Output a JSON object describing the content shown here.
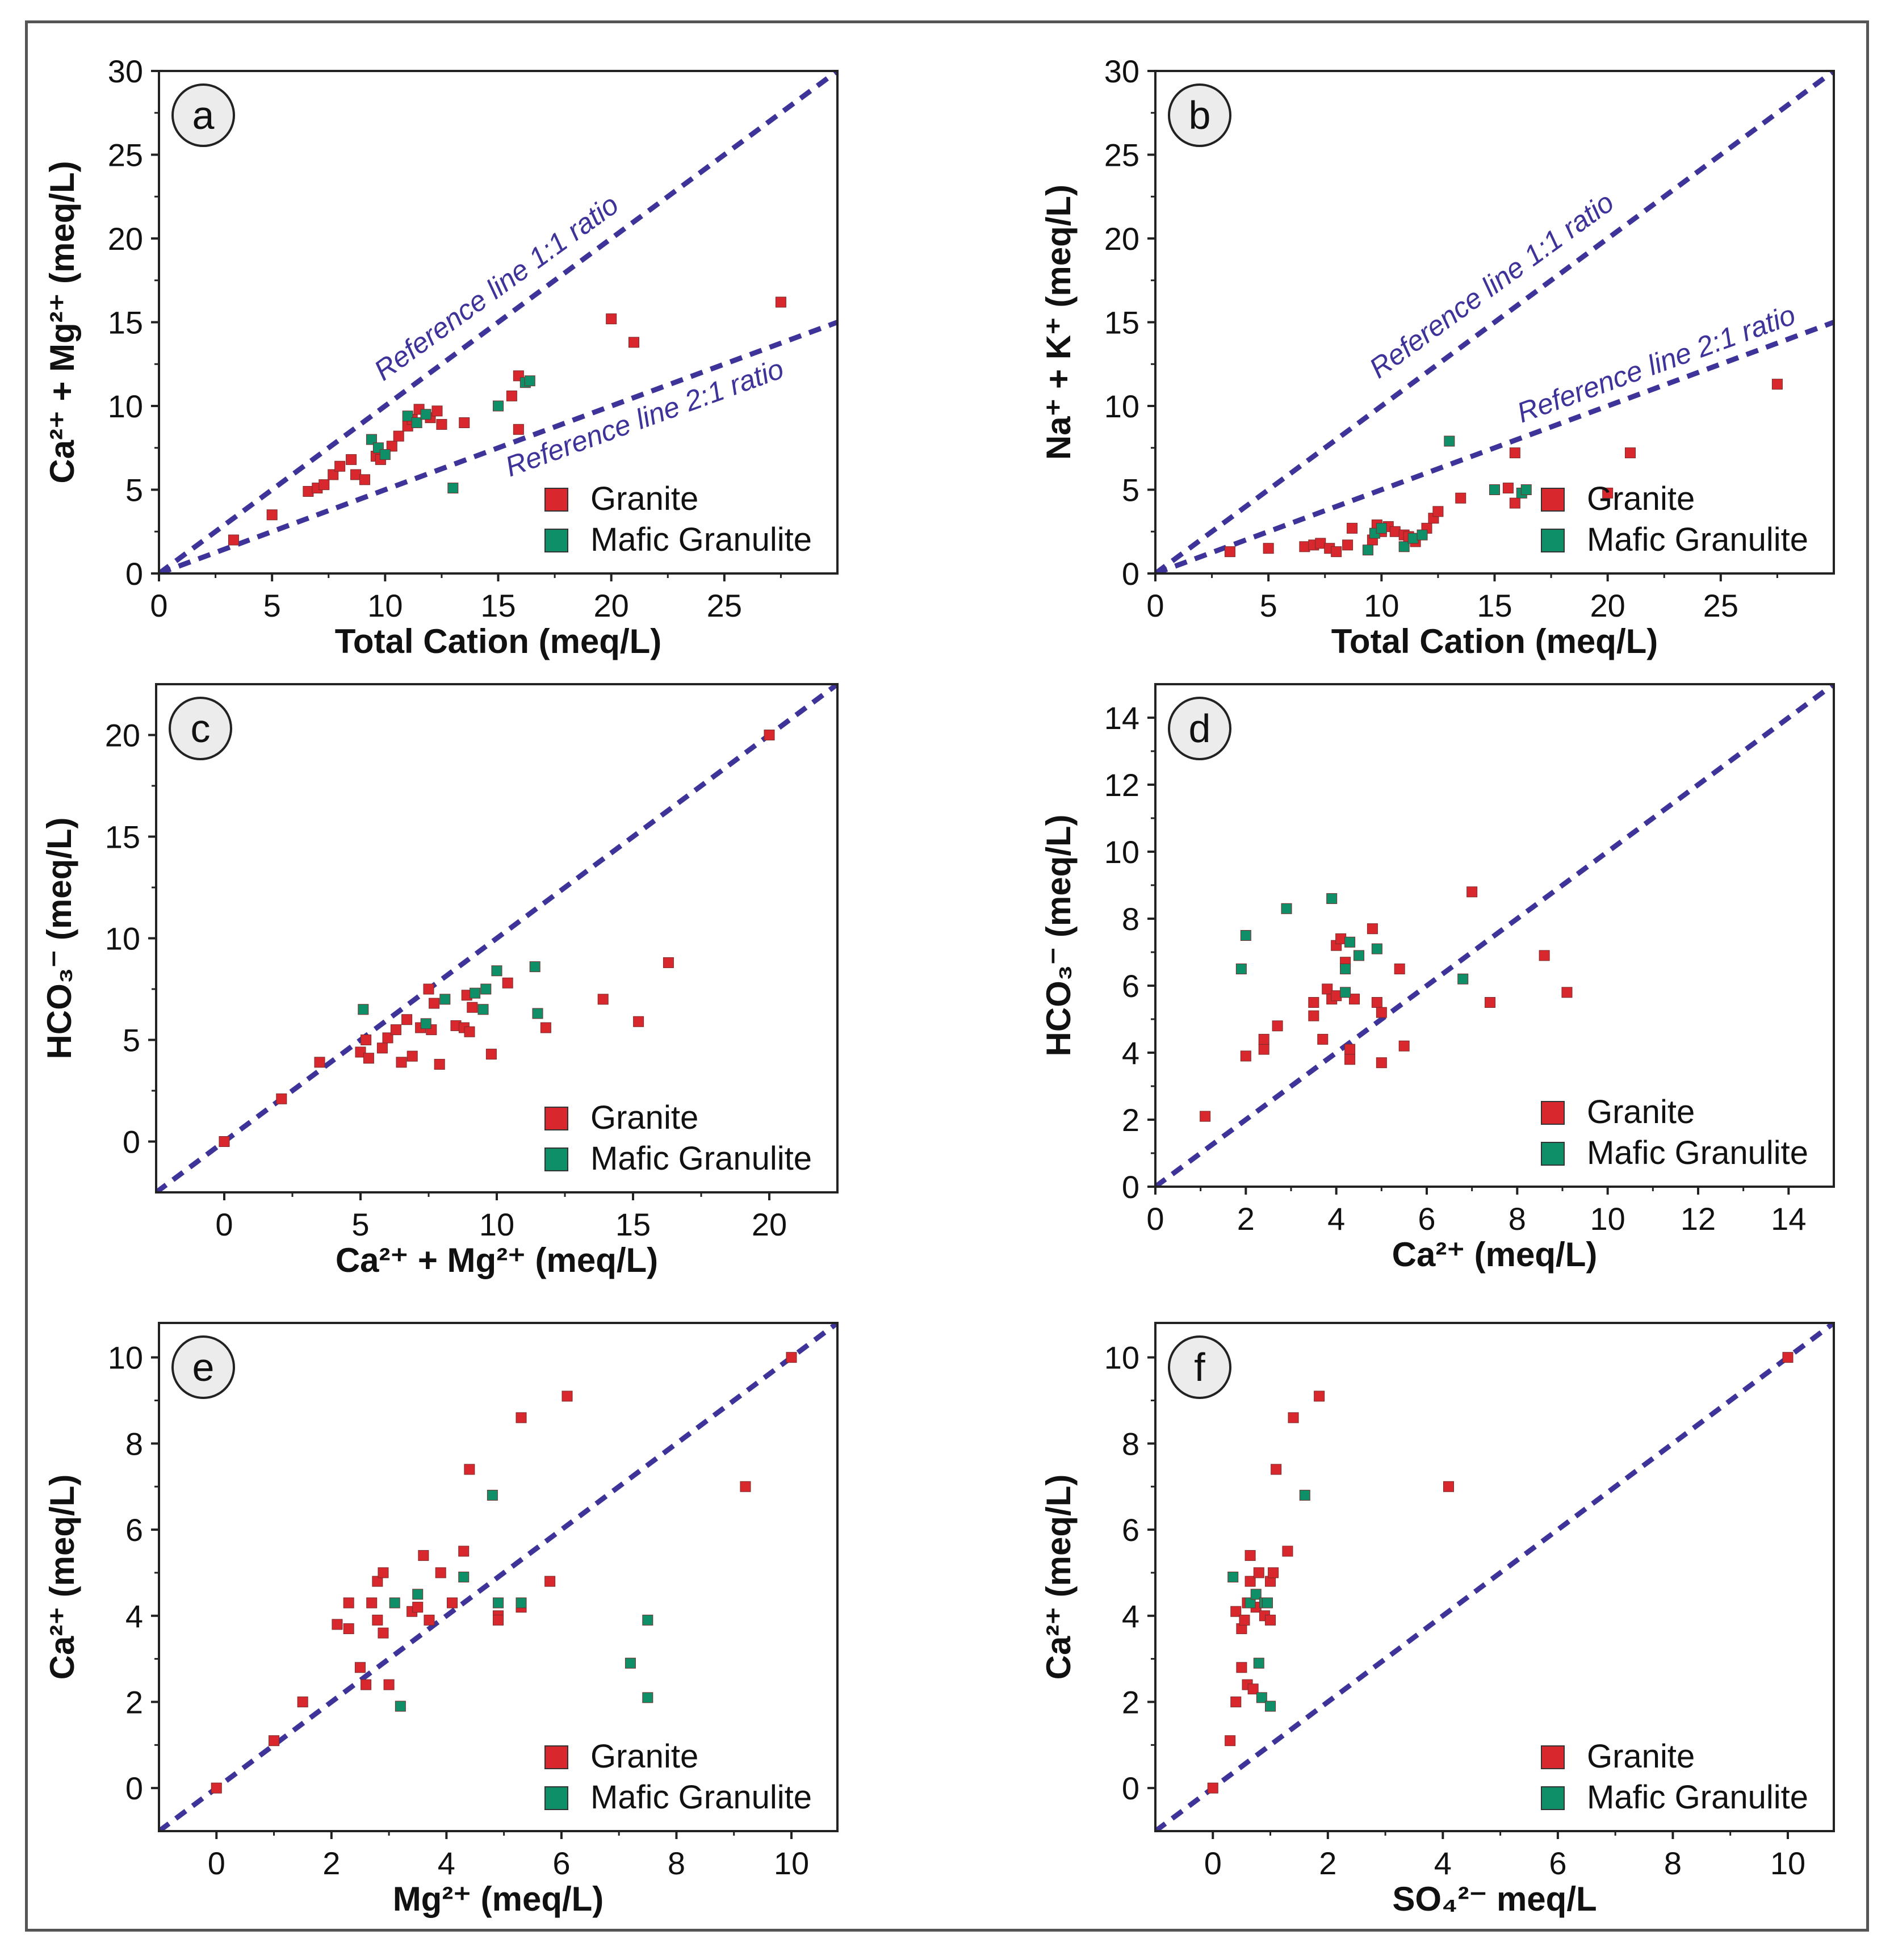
{
  "colors": {
    "granite": "#d8282e",
    "mafic": "#0e8f68",
    "line": "#3d3399",
    "axis": "#222222"
  },
  "legend": {
    "granite": "Granite",
    "mafic": "Mafic Granulite"
  },
  "chart_data": [
    {
      "id": "a",
      "type": "scatter",
      "panel_label": "a",
      "xlabel": "Total Cation (meq/L)",
      "ylabel": "Ca²⁺ + Mg²⁺ (meq/L)",
      "xlim": [
        0,
        30
      ],
      "ylim": [
        0,
        30
      ],
      "xticks": [
        0,
        5,
        10,
        15,
        20,
        25
      ],
      "yticks": [
        0,
        5,
        10,
        15,
        20,
        25,
        30
      ],
      "ref_lines": [
        {
          "slope": 1,
          "label": "Reference line 1:1 ratio"
        },
        {
          "slope": 0.5,
          "label": "Reference line 2:1 ratio"
        }
      ],
      "series": [
        {
          "name": "Granite",
          "points": [
            [
              3.3,
              2
            ],
            [
              5,
              3.5
            ],
            [
              6.6,
              4.9
            ],
            [
              7,
              5.1
            ],
            [
              7.3,
              5.3
            ],
            [
              7.7,
              5.9
            ],
            [
              8,
              6.4
            ],
            [
              8.5,
              6.8
            ],
            [
              8.7,
              5.9
            ],
            [
              9.1,
              5.6
            ],
            [
              9.6,
              7
            ],
            [
              9.8,
              6.8
            ],
            [
              10.3,
              7.6
            ],
            [
              10.6,
              8.2
            ],
            [
              11,
              8.8
            ],
            [
              11.2,
              9.2
            ],
            [
              11.5,
              9.8
            ],
            [
              12,
              9.3
            ],
            [
              12.3,
              9.7
            ],
            [
              12.5,
              8.9
            ],
            [
              13.5,
              9
            ],
            [
              15.6,
              10.6
            ],
            [
              15.9,
              11.8
            ],
            [
              15.9,
              8.6
            ],
            [
              20,
              15.2
            ],
            [
              21,
              13.8
            ],
            [
              27.5,
              16.2
            ]
          ]
        },
        {
          "name": "Mafic Granulite",
          "points": [
            [
              9.4,
              8
            ],
            [
              9.7,
              7.5
            ],
            [
              10,
              7.1
            ],
            [
              11,
              9.4
            ],
            [
              11.4,
              9
            ],
            [
              11.8,
              9.5
            ],
            [
              13,
              5.1
            ],
            [
              15,
              10
            ],
            [
              16.2,
              11.4
            ],
            [
              16.4,
              11.5
            ]
          ]
        }
      ]
    },
    {
      "id": "b",
      "type": "scatter",
      "panel_label": "b",
      "xlabel": "Total Cation (meq/L)",
      "ylabel": "Na⁺ + K⁺ (meq/L)",
      "xlim": [
        0,
        30
      ],
      "ylim": [
        0,
        30
      ],
      "xticks": [
        0,
        5,
        10,
        15,
        20,
        25
      ],
      "yticks": [
        0,
        5,
        10,
        15,
        20,
        25,
        30
      ],
      "ref_lines": [
        {
          "slope": 1,
          "label": "Reference line 1:1 ratio"
        },
        {
          "slope": 0.5,
          "label": "Reference line 2:1 ratio"
        }
      ],
      "series": [
        {
          "name": "Granite",
          "points": [
            [
              3.3,
              1.3
            ],
            [
              5,
              1.5
            ],
            [
              6.6,
              1.6
            ],
            [
              7,
              1.7
            ],
            [
              7.3,
              1.8
            ],
            [
              7.7,
              1.5
            ],
            [
              8,
              1.3
            ],
            [
              8.5,
              1.7
            ],
            [
              8.7,
              2.7
            ],
            [
              9.6,
              2
            ],
            [
              9.8,
              2.9
            ],
            [
              10,
              2.5
            ],
            [
              10.3,
              2.8
            ],
            [
              10.6,
              2.5
            ],
            [
              11,
              2.3
            ],
            [
              11.2,
              2.2
            ],
            [
              11.5,
              1.9
            ],
            [
              12,
              2.7
            ],
            [
              12.3,
              3.3
            ],
            [
              12.5,
              3.7
            ],
            [
              13.5,
              4.5
            ],
            [
              15.6,
              5.1
            ],
            [
              15.9,
              7.2
            ],
            [
              15.9,
              4.2
            ],
            [
              20,
              4.8
            ],
            [
              21,
              7.2
            ],
            [
              27.5,
              11.3
            ]
          ]
        },
        {
          "name": "Mafic Granulite",
          "points": [
            [
              9.4,
              1.4
            ],
            [
              9.7,
              2.4
            ],
            [
              10,
              2.7
            ],
            [
              11,
              1.6
            ],
            [
              11.4,
              2.1
            ],
            [
              11.8,
              2.3
            ],
            [
              13,
              7.9
            ],
            [
              15,
              5
            ],
            [
              16.2,
              4.8
            ],
            [
              16.4,
              5
            ]
          ]
        }
      ]
    },
    {
      "id": "c",
      "type": "scatter",
      "panel_label": "c",
      "xlabel": "Ca²⁺ + Mg²⁺ (meq/L)",
      "ylabel": "HCO₃⁻ (meq/L)",
      "xlim": [
        -2.5,
        22.5
      ],
      "ylim": [
        -2.5,
        22.5
      ],
      "xticks": [
        0,
        5,
        10,
        15,
        20
      ],
      "yticks": [
        0,
        5,
        10,
        15,
        20
      ],
      "ref_lines": [
        {
          "slope": 1,
          "label": ""
        }
      ],
      "series": [
        {
          "name": "Granite",
          "points": [
            [
              0,
              0
            ],
            [
              2.1,
              2.1
            ],
            [
              3.5,
              3.9
            ],
            [
              5,
              4.4
            ],
            [
              5.2,
              5
            ],
            [
              5.3,
              4.1
            ],
            [
              5.8,
              4.6
            ],
            [
              6,
              5.1
            ],
            [
              6.3,
              5.5
            ],
            [
              6.5,
              3.9
            ],
            [
              6.7,
              6
            ],
            [
              6.9,
              4.2
            ],
            [
              7.2,
              5.6
            ],
            [
              7.5,
              7.5
            ],
            [
              7.6,
              5.5
            ],
            [
              7.7,
              6.8
            ],
            [
              7.9,
              3.8
            ],
            [
              8.5,
              5.7
            ],
            [
              8.8,
              5.6
            ],
            [
              8.9,
              7.2
            ],
            [
              9,
              5.4
            ],
            [
              9.1,
              6.6
            ],
            [
              9.8,
              4.3
            ],
            [
              10.4,
              7.8
            ],
            [
              11.8,
              5.6
            ],
            [
              13.9,
              7
            ],
            [
              15.2,
              5.9
            ],
            [
              16.3,
              8.8
            ],
            [
              20,
              20
            ]
          ]
        },
        {
          "name": "Mafic Granulite",
          "points": [
            [
              5.1,
              6.5
            ],
            [
              7.4,
              5.8
            ],
            [
              8.1,
              7
            ],
            [
              9.2,
              7.3
            ],
            [
              9.5,
              6.5
            ],
            [
              9.6,
              7.5
            ],
            [
              10,
              8.4
            ],
            [
              11.4,
              8.6
            ],
            [
              11.5,
              6.3
            ]
          ]
        }
      ]
    },
    {
      "id": "d",
      "type": "scatter",
      "panel_label": "d",
      "xlabel": "Ca²⁺ (meq/L)",
      "ylabel": "HCO₃⁻ (meq/L)",
      "xlim": [
        0,
        15
      ],
      "ylim": [
        0,
        15
      ],
      "xticks": [
        0,
        2,
        4,
        6,
        8,
        10,
        12,
        14
      ],
      "yticks": [
        0,
        2,
        4,
        6,
        8,
        10,
        12,
        14
      ],
      "ref_lines": [
        {
          "slope": 1,
          "label": ""
        }
      ],
      "series": [
        {
          "name": "Granite",
          "points": [
            [
              1.1,
              2.1
            ],
            [
              2,
              3.9
            ],
            [
              2.4,
              4.1
            ],
            [
              2.4,
              4.4
            ],
            [
              2.7,
              4.8
            ],
            [
              3.5,
              5.5
            ],
            [
              3.5,
              5.1
            ],
            [
              3.7,
              4.4
            ],
            [
              3.8,
              5.9
            ],
            [
              3.9,
              5.6
            ],
            [
              4,
              7.2
            ],
            [
              4,
              5.7
            ],
            [
              4.1,
              7.4
            ],
            [
              4.2,
              6.7
            ],
            [
              4.3,
              4.1
            ],
            [
              4.3,
              3.8
            ],
            [
              4.4,
              5.6
            ],
            [
              4.8,
              7.7
            ],
            [
              4.9,
              5.5
            ],
            [
              5,
              5.2
            ],
            [
              5,
              3.7
            ],
            [
              5.4,
              6.5
            ],
            [
              5.5,
              4.2
            ],
            [
              7,
              8.8
            ],
            [
              7.4,
              5.5
            ],
            [
              8.6,
              6.9
            ],
            [
              9.1,
              5.8
            ]
          ]
        },
        {
          "name": "Mafic Granulite",
          "points": [
            [
              1.9,
              6.5
            ],
            [
              2,
              7.5
            ],
            [
              2.9,
              8.3
            ],
            [
              3.9,
              8.6
            ],
            [
              4.2,
              6.5
            ],
            [
              4.2,
              5.8
            ],
            [
              4.3,
              7.3
            ],
            [
              4.5,
              6.9
            ],
            [
              4.9,
              7.1
            ],
            [
              6.8,
              6.2
            ]
          ]
        }
      ]
    },
    {
      "id": "e",
      "type": "scatter",
      "panel_label": "e",
      "xlabel": "Mg²⁺ (meq/L)",
      "ylabel": "Ca²⁺ (meq/L)",
      "xlim": [
        -1,
        10.8
      ],
      "ylim": [
        -1,
        10.8
      ],
      "xticks": [
        0,
        2,
        4,
        6,
        8,
        10
      ],
      "yticks": [
        0,
        2,
        4,
        6,
        8,
        10
      ],
      "ref_lines": [
        {
          "slope": 1,
          "label": ""
        }
      ],
      "series": [
        {
          "name": "Granite",
          "points": [
            [
              0,
              0
            ],
            [
              1,
              1.1
            ],
            [
              1.5,
              2
            ],
            [
              2.1,
              3.8
            ],
            [
              2.3,
              3.7
            ],
            [
              2.3,
              4.3
            ],
            [
              2.5,
              2.8
            ],
            [
              2.6,
              2.4
            ],
            [
              2.7,
              4.3
            ],
            [
              2.8,
              4.8
            ],
            [
              2.8,
              3.9
            ],
            [
              2.9,
              5
            ],
            [
              2.9,
              3.6
            ],
            [
              3,
              2.4
            ],
            [
              3.4,
              4.1
            ],
            [
              3.5,
              4.2
            ],
            [
              3.6,
              5.4
            ],
            [
              3.7,
              3.9
            ],
            [
              3.9,
              5
            ],
            [
              4.1,
              4.3
            ],
            [
              4.3,
              5.5
            ],
            [
              4.4,
              7.4
            ],
            [
              4.9,
              4
            ],
            [
              4.9,
              3.9
            ],
            [
              5.3,
              4.2
            ],
            [
              5.3,
              8.6
            ],
            [
              5.8,
              4.8
            ],
            [
              6.1,
              9.1
            ],
            [
              9.2,
              7
            ],
            [
              10,
              10
            ]
          ]
        },
        {
          "name": "Mafic Granulite",
          "points": [
            [
              3.1,
              4.3
            ],
            [
              3.2,
              1.9
            ],
            [
              3.5,
              4.5
            ],
            [
              4.3,
              4.9
            ],
            [
              4.8,
              6.8
            ],
            [
              4.9,
              4.3
            ],
            [
              5.3,
              4.3
            ],
            [
              7.2,
              2.9
            ],
            [
              7.5,
              2.1
            ],
            [
              7.5,
              3.9
            ]
          ]
        }
      ]
    },
    {
      "id": "f",
      "type": "scatter",
      "panel_label": "f",
      "xlabel": "SO₄²⁻ meq/L",
      "ylabel": "Ca²⁺ (meq/L)",
      "xlim": [
        -1,
        10.8
      ],
      "ylim": [
        -1,
        10.8
      ],
      "xticks": [
        0,
        2,
        4,
        6,
        8,
        10
      ],
      "yticks": [
        0,
        2,
        4,
        6,
        8,
        10
      ],
      "ref_lines": [
        {
          "slope": 1,
          "label": ""
        }
      ],
      "series": [
        {
          "name": "Granite",
          "points": [
            [
              0,
              0
            ],
            [
              0.3,
              1.1
            ],
            [
              0.4,
              2
            ],
            [
              0.4,
              4.1
            ],
            [
              0.5,
              2.8
            ],
            [
              0.5,
              3.7
            ],
            [
              0.55,
              3.9
            ],
            [
              0.6,
              4.3
            ],
            [
              0.6,
              2.4
            ],
            [
              0.65,
              4.8
            ],
            [
              0.65,
              5.4
            ],
            [
              0.7,
              2.3
            ],
            [
              0.75,
              4.2
            ],
            [
              0.8,
              5
            ],
            [
              0.9,
              4
            ],
            [
              1,
              3.9
            ],
            [
              1,
              4.8
            ],
            [
              1.05,
              5
            ],
            [
              1.1,
              7.4
            ],
            [
              1.3,
              5.5
            ],
            [
              1.4,
              8.6
            ],
            [
              1.85,
              9.1
            ],
            [
              4.1,
              7
            ],
            [
              10,
              10
            ]
          ]
        },
        {
          "name": "Mafic Granulite",
          "points": [
            [
              0.35,
              4.9
            ],
            [
              0.65,
              4.3
            ],
            [
              0.75,
              4.5
            ],
            [
              0.8,
              2.9
            ],
            [
              0.85,
              2.1
            ],
            [
              0.9,
              4.3
            ],
            [
              0.95,
              4.3
            ],
            [
              1,
              1.9
            ],
            [
              1.6,
              6.8
            ]
          ]
        }
      ]
    }
  ]
}
